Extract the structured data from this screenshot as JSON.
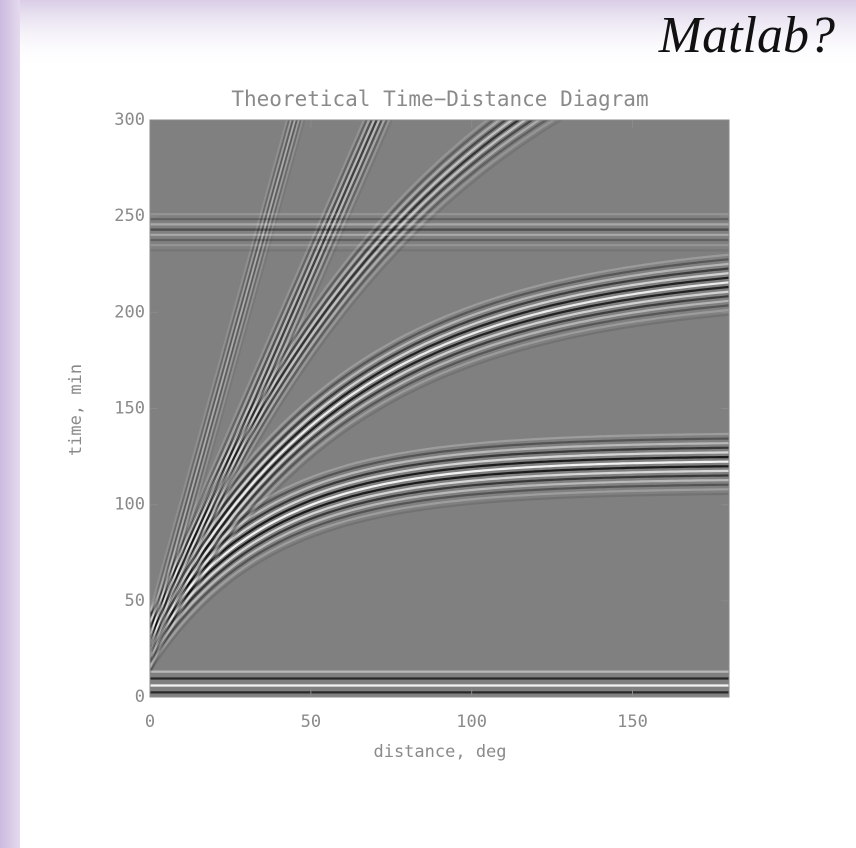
{
  "slide": {
    "heading": "Matlab?"
  },
  "chart_data": {
    "type": "image",
    "title": "Theoretical Time−Distance Diagram",
    "x_label": "distance, deg",
    "y_label": "time, min",
    "xlim": [
      0,
      180
    ],
    "xticks": [
      0,
      50,
      100,
      150
    ],
    "ylim": [
      0,
      300
    ],
    "yticks": [
      0,
      50,
      100,
      150,
      200,
      250,
      300
    ]
  }
}
